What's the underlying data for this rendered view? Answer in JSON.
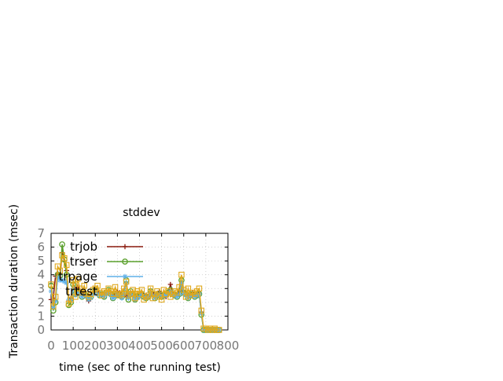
{
  "chart_data": {
    "type": "line",
    "title": "stddev",
    "xlabel": "time (sec of the running test)",
    "ylabel": "Transaction duration (msec)",
    "xlim": [
      0,
      800
    ],
    "ylim": [
      0,
      7
    ],
    "xticks": [
      "0",
      "100",
      "200",
      "300",
      "400",
      "500",
      "600",
      "700",
      "800"
    ],
    "yticks": [
      "0",
      "1",
      "2",
      "3",
      "4",
      "5",
      "6",
      "7"
    ],
    "grid": true,
    "legend_position": "top-left",
    "series": [
      {
        "name": "trjob",
        "color": "#8b1a0e",
        "marker": "plus",
        "points": [
          [
            0,
            2.2
          ],
          [
            10,
            2.3
          ],
          [
            20,
            3.9
          ],
          [
            30,
            4.1
          ],
          [
            40,
            3.8
          ],
          [
            50,
            5.6
          ],
          [
            60,
            5.0
          ],
          [
            70,
            4.3
          ],
          [
            80,
            2.1
          ],
          [
            90,
            2.3
          ],
          [
            100,
            3.4
          ],
          [
            110,
            2.9
          ],
          [
            120,
            3.1
          ],
          [
            130,
            2.9
          ],
          [
            140,
            2.6
          ],
          [
            150,
            2.7
          ],
          [
            160,
            2.5
          ],
          [
            170,
            2.1
          ],
          [
            180,
            2.5
          ],
          [
            190,
            2.7
          ],
          [
            200,
            2.9
          ],
          [
            210,
            2.8
          ],
          [
            220,
            2.6
          ],
          [
            230,
            2.7
          ],
          [
            240,
            2.6
          ],
          [
            250,
            2.7
          ],
          [
            260,
            2.8
          ],
          [
            270,
            2.6
          ],
          [
            280,
            2.4
          ],
          [
            290,
            2.6
          ],
          [
            300,
            2.8
          ],
          [
            310,
            2.7
          ],
          [
            320,
            2.5
          ],
          [
            330,
            2.6
          ],
          [
            340,
            2.4
          ],
          [
            350,
            2.6
          ],
          [
            360,
            2.7
          ],
          [
            370,
            2.5
          ],
          [
            380,
            2.4
          ],
          [
            390,
            2.5
          ],
          [
            400,
            2.6
          ],
          [
            410,
            2.7
          ],
          [
            420,
            2.6
          ],
          [
            430,
            2.5
          ],
          [
            440,
            2.4
          ],
          [
            450,
            2.5
          ],
          [
            460,
            2.7
          ],
          [
            470,
            2.4
          ],
          [
            480,
            2.6
          ],
          [
            490,
            2.8
          ],
          [
            500,
            2.6
          ],
          [
            510,
            2.5
          ],
          [
            520,
            2.4
          ],
          [
            530,
            2.7
          ],
          [
            540,
            3.3
          ],
          [
            550,
            2.7
          ],
          [
            560,
            2.6
          ],
          [
            570,
            2.5
          ],
          [
            580,
            2.8
          ],
          [
            590,
            3.0
          ],
          [
            600,
            2.8
          ],
          [
            610,
            2.7
          ],
          [
            620,
            2.4
          ],
          [
            630,
            2.6
          ],
          [
            640,
            2.7
          ],
          [
            650,
            2.5
          ],
          [
            660,
            2.6
          ],
          [
            670,
            2.7
          ],
          [
            680,
            1.3
          ],
          [
            690,
            0.0
          ],
          [
            700,
            0.0
          ],
          [
            710,
            0.0
          ],
          [
            720,
            0.0
          ],
          [
            730,
            0.0
          ],
          [
            740,
            0.0
          ],
          [
            750,
            0.0
          ],
          [
            760,
            0.0
          ]
        ]
      },
      {
        "name": "trser",
        "color": "#5aa02c",
        "marker": "circle",
        "points": [
          [
            0,
            3.2
          ],
          [
            10,
            1.4
          ],
          [
            20,
            2.0
          ],
          [
            30,
            4.0
          ],
          [
            40,
            3.9
          ],
          [
            50,
            6.2
          ],
          [
            60,
            5.1
          ],
          [
            70,
            4.0
          ],
          [
            80,
            1.8
          ],
          [
            90,
            2.0
          ],
          [
            100,
            3.3
          ],
          [
            110,
            2.6
          ],
          [
            120,
            2.8
          ],
          [
            130,
            2.7
          ],
          [
            140,
            2.4
          ],
          [
            150,
            2.6
          ],
          [
            160,
            2.5
          ],
          [
            170,
            2.3
          ],
          [
            180,
            2.4
          ],
          [
            190,
            2.8
          ],
          [
            200,
            2.9
          ],
          [
            210,
            2.7
          ],
          [
            220,
            2.5
          ],
          [
            230,
            2.6
          ],
          [
            240,
            2.4
          ],
          [
            250,
            2.7
          ],
          [
            260,
            2.9
          ],
          [
            270,
            2.6
          ],
          [
            280,
            2.3
          ],
          [
            290,
            2.5
          ],
          [
            300,
            2.6
          ],
          [
            310,
            2.5
          ],
          [
            320,
            2.4
          ],
          [
            330,
            2.7
          ],
          [
            340,
            3.6
          ],
          [
            350,
            2.2
          ],
          [
            360,
            2.8
          ],
          [
            370,
            2.6
          ],
          [
            380,
            2.2
          ],
          [
            390,
            2.4
          ],
          [
            400,
            2.5
          ],
          [
            410,
            2.6
          ],
          [
            420,
            2.4
          ],
          [
            430,
            2.3
          ],
          [
            440,
            2.4
          ],
          [
            450,
            2.8
          ],
          [
            460,
            2.6
          ],
          [
            470,
            2.3
          ],
          [
            480,
            2.5
          ],
          [
            490,
            2.6
          ],
          [
            500,
            2.4
          ],
          [
            510,
            2.5
          ],
          [
            520,
            2.6
          ],
          [
            530,
            2.7
          ],
          [
            540,
            2.9
          ],
          [
            550,
            2.6
          ],
          [
            560,
            2.5
          ],
          [
            570,
            2.4
          ],
          [
            580,
            2.6
          ],
          [
            590,
            3.6
          ],
          [
            600,
            2.7
          ],
          [
            610,
            2.6
          ],
          [
            620,
            2.3
          ],
          [
            630,
            2.5
          ],
          [
            640,
            2.6
          ],
          [
            650,
            2.4
          ],
          [
            660,
            2.5
          ],
          [
            670,
            2.6
          ],
          [
            680,
            1.1
          ],
          [
            690,
            0.0
          ],
          [
            700,
            0.0
          ],
          [
            710,
            0.0
          ],
          [
            720,
            0.0
          ],
          [
            730,
            0.0
          ],
          [
            740,
            0.0
          ],
          [
            750,
            0.0
          ],
          [
            760,
            0.0
          ]
        ]
      },
      {
        "name": "trpage",
        "color": "#5fb0e8",
        "marker": "star",
        "points": [
          [
            0,
            2.8
          ],
          [
            10,
            1.6
          ],
          [
            20,
            2.1
          ],
          [
            30,
            3.8
          ],
          [
            40,
            3.6
          ],
          [
            50,
            3.6
          ],
          [
            60,
            3.5
          ],
          [
            70,
            3.4
          ],
          [
            80,
            2.2
          ],
          [
            90,
            2.1
          ],
          [
            100,
            3.0
          ],
          [
            110,
            2.5
          ],
          [
            120,
            2.7
          ],
          [
            130,
            2.6
          ],
          [
            140,
            2.4
          ],
          [
            150,
            2.5
          ],
          [
            160,
            2.4
          ],
          [
            170,
            2.2
          ],
          [
            180,
            2.3
          ],
          [
            190,
            2.6
          ],
          [
            200,
            2.8
          ],
          [
            210,
            2.6
          ],
          [
            220,
            2.5
          ],
          [
            230,
            2.6
          ],
          [
            240,
            2.4
          ],
          [
            250,
            2.6
          ],
          [
            260,
            2.7
          ],
          [
            270,
            2.5
          ],
          [
            280,
            2.3
          ],
          [
            290,
            2.4
          ],
          [
            300,
            2.6
          ],
          [
            310,
            2.5
          ],
          [
            320,
            2.3
          ],
          [
            330,
            2.6
          ],
          [
            340,
            3.4
          ],
          [
            350,
            2.3
          ],
          [
            360,
            2.7
          ],
          [
            370,
            2.5
          ],
          [
            380,
            2.2
          ],
          [
            390,
            2.3
          ],
          [
            400,
            2.4
          ],
          [
            410,
            2.6
          ],
          [
            420,
            2.4
          ],
          [
            430,
            2.3
          ],
          [
            440,
            2.4
          ],
          [
            450,
            2.7
          ],
          [
            460,
            2.5
          ],
          [
            470,
            2.3
          ],
          [
            480,
            2.5
          ],
          [
            490,
            2.6
          ],
          [
            500,
            2.4
          ],
          [
            510,
            2.5
          ],
          [
            520,
            2.5
          ],
          [
            530,
            2.6
          ],
          [
            540,
            2.8
          ],
          [
            550,
            2.5
          ],
          [
            560,
            2.5
          ],
          [
            570,
            2.4
          ],
          [
            580,
            2.6
          ],
          [
            590,
            3.4
          ],
          [
            600,
            2.6
          ],
          [
            610,
            2.5
          ],
          [
            620,
            2.3
          ],
          [
            630,
            2.5
          ],
          [
            640,
            2.5
          ],
          [
            650,
            2.4
          ],
          [
            660,
            2.5
          ],
          [
            670,
            2.6
          ],
          [
            680,
            1.2
          ],
          [
            690,
            0.0
          ],
          [
            700,
            0.0
          ],
          [
            710,
            0.0
          ],
          [
            720,
            0.0
          ],
          [
            730,
            0.0
          ],
          [
            740,
            0.0
          ],
          [
            750,
            0.0
          ],
          [
            760,
            0.0
          ]
        ]
      },
      {
        "name": "trtest",
        "color": "#e0a81c",
        "marker": "square",
        "points": [
          [
            0,
            3.3
          ],
          [
            10,
            1.7
          ],
          [
            20,
            2.4
          ],
          [
            30,
            4.6
          ],
          [
            40,
            4.3
          ],
          [
            50,
            5.4
          ],
          [
            60,
            5.2
          ],
          [
            70,
            4.7
          ],
          [
            80,
            1.9
          ],
          [
            90,
            2.2
          ],
          [
            100,
            3.6
          ],
          [
            110,
            2.4
          ],
          [
            120,
            3.7
          ],
          [
            130,
            3.0
          ],
          [
            140,
            2.7
          ],
          [
            150,
            3.2
          ],
          [
            160,
            2.6
          ],
          [
            170,
            2.4
          ],
          [
            180,
            2.6
          ],
          [
            190,
            2.9
          ],
          [
            200,
            3.0
          ],
          [
            210,
            3.2
          ],
          [
            220,
            2.7
          ],
          [
            230,
            2.5
          ],
          [
            240,
            2.8
          ],
          [
            250,
            2.7
          ],
          [
            260,
            3.0
          ],
          [
            270,
            2.8
          ],
          [
            280,
            2.6
          ],
          [
            290,
            3.1
          ],
          [
            300,
            2.6
          ],
          [
            310,
            2.5
          ],
          [
            320,
            2.6
          ],
          [
            330,
            3.0
          ],
          [
            340,
            3.5
          ],
          [
            350,
            2.5
          ],
          [
            360,
            2.6
          ],
          [
            370,
            2.9
          ],
          [
            380,
            2.3
          ],
          [
            390,
            2.8
          ],
          [
            400,
            2.6
          ],
          [
            410,
            2.9
          ],
          [
            420,
            2.2
          ],
          [
            430,
            2.4
          ],
          [
            440,
            2.5
          ],
          [
            450,
            3.0
          ],
          [
            460,
            2.3
          ],
          [
            470,
            2.6
          ],
          [
            480,
            2.8
          ],
          [
            490,
            2.4
          ],
          [
            500,
            2.2
          ],
          [
            510,
            2.9
          ],
          [
            520,
            2.6
          ],
          [
            530,
            2.8
          ],
          [
            540,
            2.4
          ],
          [
            550,
            2.6
          ],
          [
            560,
            2.8
          ],
          [
            570,
            2.7
          ],
          [
            580,
            3.1
          ],
          [
            590,
            4.0
          ],
          [
            600,
            2.9
          ],
          [
            610,
            2.4
          ],
          [
            620,
            3.0
          ],
          [
            630,
            2.5
          ],
          [
            640,
            2.7
          ],
          [
            650,
            2.6
          ],
          [
            660,
            2.8
          ],
          [
            670,
            3.0
          ],
          [
            680,
            1.4
          ],
          [
            690,
            0.1
          ],
          [
            700,
            0.1
          ],
          [
            710,
            0.0
          ],
          [
            720,
            0.1
          ],
          [
            730,
            0.0
          ],
          [
            740,
            0.1
          ],
          [
            750,
            0.0
          ],
          [
            760,
            0.0
          ]
        ]
      }
    ]
  }
}
